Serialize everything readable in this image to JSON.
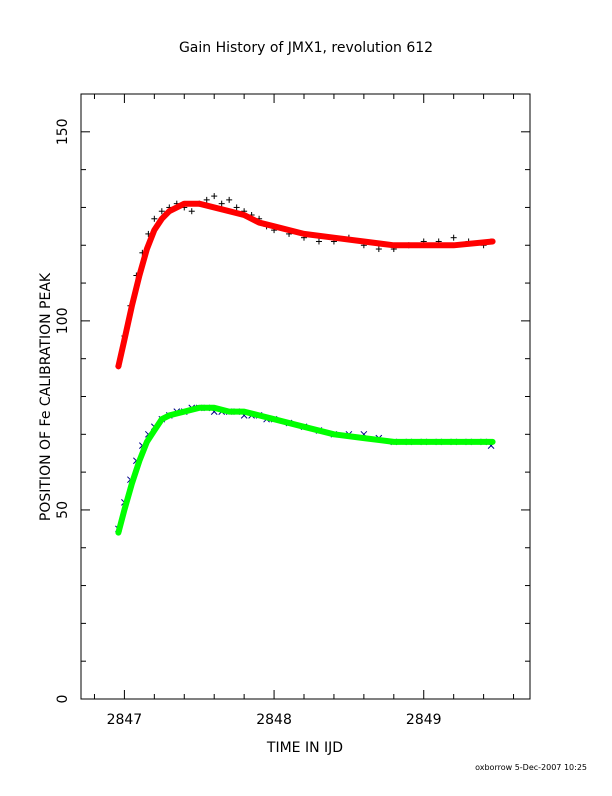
{
  "chart_data": {
    "type": "scatter",
    "title": "Gain History of JMX1, revolution 612",
    "xlabel": "TIME IN IJD",
    "ylabel": "POSITION OF Fe CALIBRATION PEAK",
    "footer": "oxborrow  5-Dec-2007 10:25",
    "xlim": [
      2846.71,
      2849.71
    ],
    "ylim": [
      0,
      160
    ],
    "x_ticks": [
      2847,
      2848,
      2849
    ],
    "y_ticks": [
      0,
      50,
      100,
      150
    ],
    "x_tick_labels": [
      "2847",
      "2848",
      "2849"
    ],
    "y_tick_labels": [
      "0",
      "50",
      "100",
      "150"
    ],
    "grid": false,
    "series": [
      {
        "marker": "+",
        "color": "#000000",
        "note": "measurements",
        "x": [
          2846.96,
          2847.0,
          2847.04,
          2847.08,
          2847.12,
          2847.16,
          2847.2,
          2847.25,
          2847.3,
          2847.35,
          2847.4,
          2847.45,
          2847.5,
          2847.55,
          2847.6,
          2847.65,
          2847.7,
          2847.75,
          2847.8,
          2847.85,
          2847.9,
          2847.95,
          2848.0,
          2848.1,
          2848.2,
          2848.3,
          2848.4,
          2848.5,
          2848.6,
          2848.7,
          2848.8,
          2848.9,
          2849.0,
          2849.1,
          2849.2,
          2849.3,
          2849.4,
          2849.45
        ],
        "y": [
          88,
          96,
          104,
          112,
          118,
          123,
          127,
          129,
          130,
          131,
          130,
          129,
          131,
          132,
          133,
          131,
          132,
          130,
          129,
          128,
          127,
          125,
          124,
          123,
          122,
          121,
          121,
          122,
          120,
          119,
          119,
          120,
          121,
          121,
          122,
          121,
          120,
          121
        ]
      },
      {
        "marker": "x",
        "color": "#00008b",
        "note": "measurements",
        "x": [
          2846.96,
          2847.0,
          2847.04,
          2847.08,
          2847.12,
          2847.16,
          2847.2,
          2847.25,
          2847.3,
          2847.35,
          2847.4,
          2847.45,
          2847.5,
          2847.55,
          2847.6,
          2847.65,
          2847.7,
          2847.75,
          2847.8,
          2847.85,
          2847.9,
          2847.95,
          2848.0,
          2848.1,
          2848.2,
          2848.3,
          2848.4,
          2848.5,
          2848.6,
          2848.7,
          2848.8,
          2848.9,
          2849.0,
          2849.1,
          2849.2,
          2849.3,
          2849.4,
          2849.45
        ],
        "y": [
          45,
          52,
          58,
          63,
          67,
          70,
          72,
          74,
          75,
          76,
          76,
          77,
          77,
          77,
          76,
          76,
          76,
          76,
          75,
          75,
          75,
          74,
          74,
          73,
          72,
          71,
          70,
          70,
          70,
          69,
          68,
          68,
          68,
          68,
          68,
          68,
          68,
          67
        ]
      },
      {
        "marker": "line",
        "color": "#ff0000",
        "note": "fit",
        "x": [
          2846.96,
          2847.0,
          2847.05,
          2847.1,
          2847.15,
          2847.2,
          2847.25,
          2847.3,
          2847.4,
          2847.5,
          2847.6,
          2847.7,
          2847.8,
          2847.9,
          2848.0,
          2848.2,
          2848.4,
          2848.6,
          2848.8,
          2849.0,
          2849.2,
          2849.46
        ],
        "y": [
          88,
          95,
          104,
          112,
          119,
          124,
          127,
          129,
          131,
          131,
          130,
          129,
          128,
          126,
          125,
          123,
          122,
          121,
          120,
          120,
          120,
          121
        ]
      },
      {
        "marker": "line",
        "color": "#00ff00",
        "note": "fit",
        "x": [
          2846.96,
          2847.0,
          2847.05,
          2847.1,
          2847.15,
          2847.2,
          2847.25,
          2847.3,
          2847.4,
          2847.5,
          2847.6,
          2847.7,
          2847.8,
          2847.9,
          2848.0,
          2848.2,
          2848.4,
          2848.6,
          2848.8,
          2849.0,
          2849.2,
          2849.46
        ],
        "y": [
          44,
          50,
          57,
          63,
          68,
          71,
          74,
          75,
          76,
          77,
          77,
          76,
          76,
          75,
          74,
          72,
          70,
          69,
          68,
          68,
          68,
          68
        ]
      }
    ]
  }
}
